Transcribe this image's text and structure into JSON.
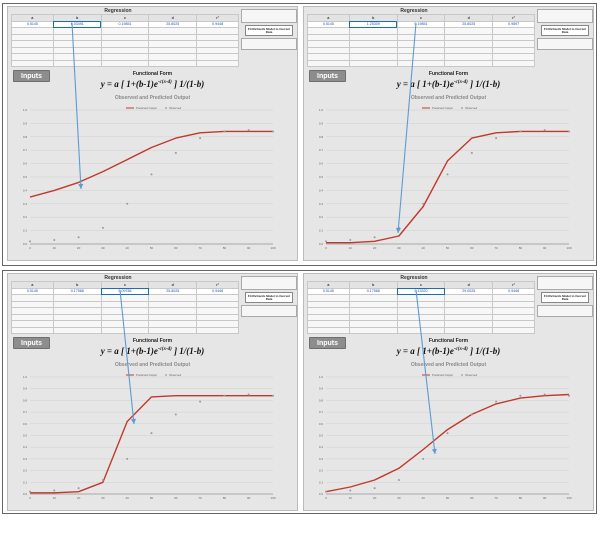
{
  "panels": [
    {
      "regression_title": "Regression",
      "params": {
        "a": "0.5145",
        "b": "6.03491",
        "c": "0.19851",
        "d": "25.8025",
        "rsq": "0.9448"
      },
      "side_button": "Fit Richards Model to Current Data",
      "inputs_label": "Inputs",
      "functional_form": "Functional Form",
      "equation_main": "y = a [ 1+(b-1)e",
      "equation_exp": "-c(x-d)",
      "equation_tail": "] 1/(1-b)",
      "chart_title": "Observed and Predicted Output",
      "chart_data": {
        "type": "line",
        "x": [
          0,
          10,
          20,
          30,
          40,
          50,
          60,
          70,
          80,
          90,
          100
        ],
        "xlim": [
          0,
          100
        ],
        "ylim": [
          0,
          1.0
        ],
        "series": [
          {
            "name": "Predicted Output",
            "values": [
              0.35,
              0.4,
              0.46,
              0.54,
              0.63,
              0.72,
              0.79,
              0.83,
              0.84,
              0.84,
              0.84
            ],
            "color": "#c0392b"
          },
          {
            "name": "Observed",
            "values": [
              0.02,
              0.03,
              0.05,
              0.12,
              0.3,
              0.52,
              0.68,
              0.79,
              0.84,
              0.85,
              0.84
            ],
            "color": "#9a9a9a"
          }
        ]
      }
    },
    {
      "regression_title": "Regression",
      "params": {
        "a": "0.5145",
        "b": "1.25309",
        "c": "0.19851",
        "d": "25.8025",
        "rsq": "0.9897"
      },
      "side_button": "Fit Richards Model to Current Data",
      "inputs_label": "Inputs",
      "functional_form": "Functional Form",
      "equation_main": "y = a [ 1+(b-1)e",
      "equation_exp": "-c(x-d)",
      "equation_tail": "] 1/(1-b)",
      "chart_title": "Observed and Predicted Output",
      "chart_data": {
        "type": "line",
        "x": [
          0,
          10,
          20,
          30,
          40,
          50,
          60,
          70,
          80,
          90,
          100
        ],
        "xlim": [
          0,
          100
        ],
        "ylim": [
          0,
          1.0
        ],
        "series": [
          {
            "name": "Predicted Output",
            "values": [
              0.01,
              0.01,
              0.02,
              0.06,
              0.28,
              0.62,
              0.79,
              0.83,
              0.84,
              0.84,
              0.84
            ],
            "color": "#c0392b"
          },
          {
            "name": "Observed",
            "values": [
              0.02,
              0.03,
              0.05,
              0.12,
              0.3,
              0.52,
              0.68,
              0.79,
              0.84,
              0.85,
              0.84
            ],
            "color": "#9a9a9a"
          }
        ]
      }
    },
    {
      "regression_title": "Regression",
      "params": {
        "a": "0.5145",
        "b": "0.17588",
        "c": "0.09786",
        "d": "25.8025",
        "rsq": "0.9448"
      },
      "side_button": "Fit Richards Model to Current Data",
      "inputs_label": "Inputs",
      "functional_form": "Functional Form",
      "equation_main": "y = a [ 1+(b-1)e",
      "equation_exp": "-c(x-d)",
      "equation_tail": "] 1/(1-b)",
      "chart_title": "Observed and Predicted Output",
      "chart_data": {
        "type": "line",
        "x": [
          0,
          10,
          20,
          30,
          40,
          50,
          60,
          70,
          80,
          90,
          100
        ],
        "xlim": [
          0,
          100
        ],
        "ylim": [
          0,
          1.0
        ],
        "series": [
          {
            "name": "Predicted Output",
            "values": [
              0.01,
              0.01,
              0.02,
              0.1,
              0.62,
              0.83,
              0.84,
              0.84,
              0.84,
              0.84,
              0.84
            ],
            "color": "#c0392b"
          },
          {
            "name": "Observed",
            "values": [
              0.02,
              0.03,
              0.05,
              0.12,
              0.3,
              0.52,
              0.68,
              0.79,
              0.84,
              0.85,
              0.84
            ],
            "color": "#9a9a9a"
          }
        ]
      }
    },
    {
      "regression_title": "Regression",
      "params": {
        "a": "0.5145",
        "b": "0.17588",
        "c": "0.13320",
        "d": "29.0025",
        "rsq": "0.9448"
      },
      "side_button": "Fit Richards Model to Current Data",
      "inputs_label": "Inputs",
      "functional_form": "Functional Form",
      "equation_main": "y = a [ 1+(b-1)e",
      "equation_exp": "-c(x-d)",
      "equation_tail": "] 1/(1-b)",
      "chart_title": "Observed and Predicted Output",
      "chart_data": {
        "type": "line",
        "x": [
          0,
          10,
          20,
          30,
          40,
          50,
          60,
          70,
          80,
          90,
          100
        ],
        "xlim": [
          0,
          100
        ],
        "ylim": [
          0,
          1.0
        ],
        "series": [
          {
            "name": "Predicted Output",
            "values": [
              0.02,
              0.06,
              0.12,
              0.22,
              0.38,
              0.55,
              0.68,
              0.77,
              0.82,
              0.84,
              0.85
            ],
            "color": "#c0392b"
          },
          {
            "name": "Observed",
            "values": [
              0.02,
              0.03,
              0.05,
              0.12,
              0.3,
              0.52,
              0.68,
              0.79,
              0.84,
              0.85,
              0.84
            ],
            "color": "#9a9a9a"
          }
        ]
      }
    }
  ]
}
